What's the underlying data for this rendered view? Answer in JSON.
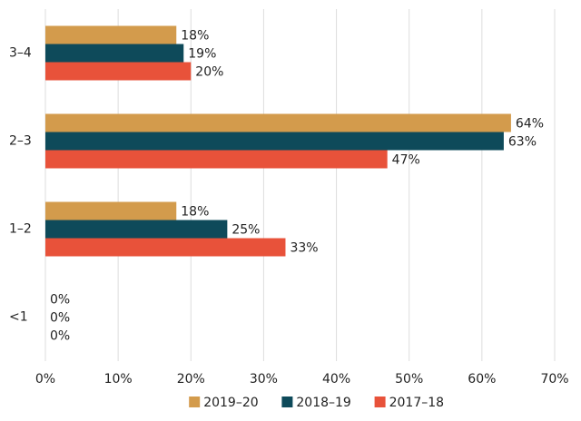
{
  "chart_data": {
    "type": "hbar",
    "categories": [
      "3–4",
      "2–3",
      "1–2",
      "<1"
    ],
    "series": [
      {
        "name": "2019–20",
        "color": "#d39b4c",
        "values": [
          18,
          64,
          18,
          0
        ],
        "value_labels": [
          "18%",
          "64%",
          "18%",
          "0%"
        ]
      },
      {
        "name": "2018–19",
        "color": "#0e4a5a",
        "values": [
          19,
          63,
          25,
          0
        ],
        "value_labels": [
          "19%",
          "63%",
          "25%",
          "0%"
        ]
      },
      {
        "name": "2017–18",
        "color": "#e8523a",
        "values": [
          20,
          47,
          33,
          0
        ],
        "value_labels": [
          "20%",
          "47%",
          "33%",
          "0%"
        ]
      }
    ],
    "xlim": [
      0,
      70
    ],
    "xticks": [
      {
        "value": 0,
        "label": "0%"
      },
      {
        "value": 10,
        "label": "10%"
      },
      {
        "value": 20,
        "label": "20%"
      },
      {
        "value": 30,
        "label": "30%"
      },
      {
        "value": 40,
        "label": "40%"
      },
      {
        "value": 50,
        "label": "50%"
      },
      {
        "value": 60,
        "label": "60%"
      },
      {
        "value": 70,
        "label": "70%"
      }
    ],
    "grid": true,
    "legend": "bottom"
  }
}
